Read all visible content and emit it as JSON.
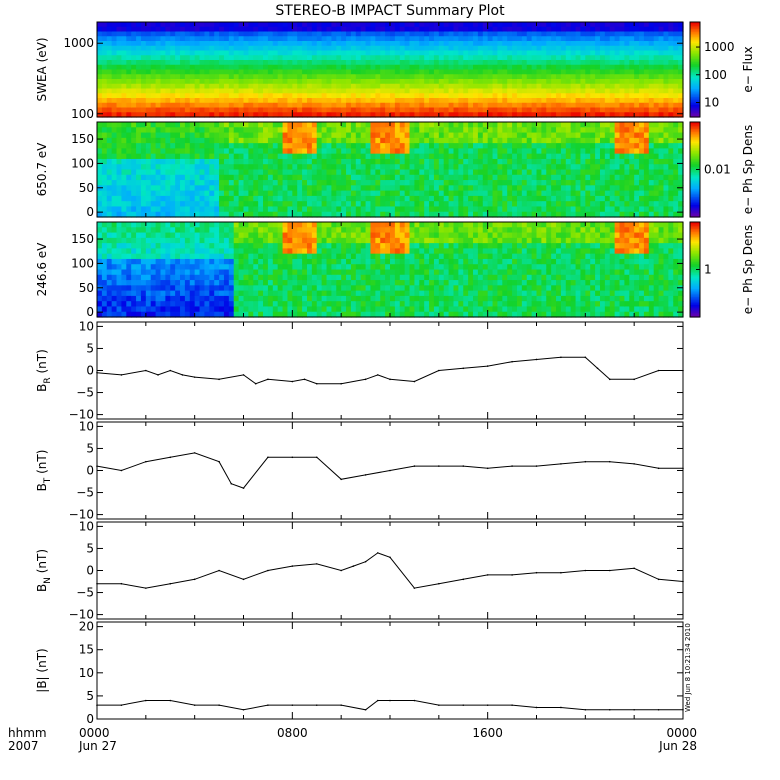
{
  "title": "STEREO-B IMPACT Summary Plot",
  "footer": {
    "time_label": "hhmm",
    "year": "2007",
    "ticks": [
      "0000",
      "0800",
      "1600",
      "0000"
    ],
    "dates": [
      "Jun 27",
      "",
      "",
      "Jun 28"
    ]
  },
  "stamp": "Wed Jun  8 10:21:34 2010",
  "chart_data": [
    {
      "type": "heatmap",
      "ylabel": "SWEA (eV)",
      "yscale": "log",
      "ylim": [
        90,
        2000
      ],
      "yticks": [
        {
          "v": 100,
          "t": "100"
        },
        {
          "v": 1000,
          "t": "1000"
        }
      ],
      "colorbar": {
        "label": "e− Flux",
        "scale": "log",
        "range": [
          3,
          8000
        ],
        "ticks": [
          {
            "v": 10,
            "t": "10"
          },
          {
            "v": 100,
            "t": "100"
          },
          {
            "v": 1000,
            "t": "1000"
          }
        ]
      }
    },
    {
      "type": "heatmap",
      "ylabel": "650.7 eV",
      "ylim": [
        -10,
        185
      ],
      "yticks": [
        {
          "v": 0,
          "t": "0"
        },
        {
          "v": 50,
          "t": "50"
        },
        {
          "v": 100,
          "t": "100"
        },
        {
          "v": 150,
          "t": "150"
        }
      ],
      "colorbar": {
        "label": "e− Ph Sp Dens",
        "scale": "log",
        "range": [
          0.001,
          0.1
        ],
        "ticks": [
          {
            "v": 0.01,
            "t": "0.01"
          }
        ]
      }
    },
    {
      "type": "heatmap",
      "ylabel": "246.6 eV",
      "ylim": [
        -10,
        185
      ],
      "yticks": [
        {
          "v": 0,
          "t": "0"
        },
        {
          "v": 50,
          "t": "50"
        },
        {
          "v": 100,
          "t": "100"
        },
        {
          "v": 150,
          "t": "150"
        }
      ],
      "colorbar": {
        "label": "e− Ph Sp Dens",
        "scale": "log",
        "range": [
          0.1,
          10
        ],
        "ticks": [
          {
            "v": 1,
            "t": "1"
          }
        ]
      }
    },
    {
      "type": "line",
      "ylabel": "B_R (nT)",
      "ylim": [
        -11,
        11
      ],
      "yticks": [
        {
          "v": -10,
          "t": "−10"
        },
        {
          "v": -5,
          "t": "−5"
        },
        {
          "v": 0,
          "t": "0"
        },
        {
          "v": 5,
          "t": "5"
        },
        {
          "v": 10,
          "t": "10"
        }
      ],
      "x": [
        0,
        1,
        2,
        2.5,
        3,
        3.5,
        4,
        5,
        6,
        6.5,
        7,
        8,
        8.5,
        9,
        10,
        11,
        11.5,
        12,
        13,
        14,
        15,
        16,
        17,
        18,
        19,
        20,
        20.5,
        21,
        22,
        23,
        24
      ],
      "y": [
        -0.5,
        -1,
        0,
        -1,
        0,
        -1,
        -1.5,
        -2,
        -1,
        -3,
        -2,
        -2.5,
        -2,
        -3,
        -3,
        -2,
        -1,
        -2,
        -2.5,
        0,
        0.5,
        1,
        2,
        2.5,
        3,
        3,
        0.5,
        -2,
        -2,
        0,
        0
      ]
    },
    {
      "type": "line",
      "ylabel": "B_T (nT)",
      "ylim": [
        -11,
        11
      ],
      "yticks": [
        {
          "v": -10,
          "t": "−10"
        },
        {
          "v": -5,
          "t": "−5"
        },
        {
          "v": 0,
          "t": "0"
        },
        {
          "v": 5,
          "t": "5"
        },
        {
          "v": 10,
          "t": "10"
        }
      ],
      "x": [
        0,
        1,
        2,
        3,
        4,
        5,
        5.5,
        6,
        7,
        8,
        9,
        10,
        11,
        12,
        13,
        14,
        15,
        16,
        17,
        18,
        19,
        20,
        21,
        22,
        23,
        24
      ],
      "y": [
        1,
        0,
        2,
        3,
        4,
        2,
        -3,
        -4,
        3,
        3,
        3,
        -2,
        -1,
        0,
        1,
        1,
        1,
        0.5,
        1,
        1,
        1.5,
        2,
        2,
        1.5,
        0.5,
        0.5
      ]
    },
    {
      "type": "line",
      "ylabel": "B_N (nT)",
      "ylim": [
        -11,
        11
      ],
      "yticks": [
        {
          "v": -10,
          "t": "−10"
        },
        {
          "v": -5,
          "t": "−5"
        },
        {
          "v": 0,
          "t": "0"
        },
        {
          "v": 5,
          "t": "5"
        },
        {
          "v": 10,
          "t": "10"
        }
      ],
      "x": [
        0,
        1,
        2,
        3,
        4,
        5,
        6,
        7,
        8,
        9,
        10,
        10.5,
        11,
        11.5,
        12,
        13,
        14,
        15,
        16,
        17,
        18,
        19,
        20,
        21,
        22,
        23,
        24
      ],
      "y": [
        -3,
        -3,
        -4,
        -3,
        -2,
        0,
        -2,
        0,
        1,
        1.5,
        0,
        1,
        2,
        4,
        3,
        -4,
        -3,
        -2,
        -1,
        -1,
        -0.5,
        -0.5,
        0,
        0,
        0.5,
        -2,
        -2.5
      ]
    },
    {
      "type": "line",
      "ylabel": "|B| (nT)",
      "ylim": [
        0,
        21
      ],
      "yticks": [
        {
          "v": 0,
          "t": "0"
        },
        {
          "v": 5,
          "t": "5"
        },
        {
          "v": 10,
          "t": "10"
        },
        {
          "v": 15,
          "t": "15"
        },
        {
          "v": 20,
          "t": "20"
        }
      ],
      "x": [
        0,
        1,
        2,
        3,
        4,
        5,
        6,
        7,
        8,
        9,
        10,
        11,
        11.5,
        12,
        13,
        14,
        15,
        16,
        17,
        18,
        19,
        20,
        21,
        22,
        23,
        24
      ],
      "y": [
        3,
        3,
        4,
        4,
        3,
        3,
        2,
        3,
        3,
        3,
        3,
        2,
        4,
        4,
        4,
        3,
        3,
        3,
        3,
        2.5,
        2.5,
        2,
        2,
        2,
        2,
        2
      ]
    }
  ]
}
